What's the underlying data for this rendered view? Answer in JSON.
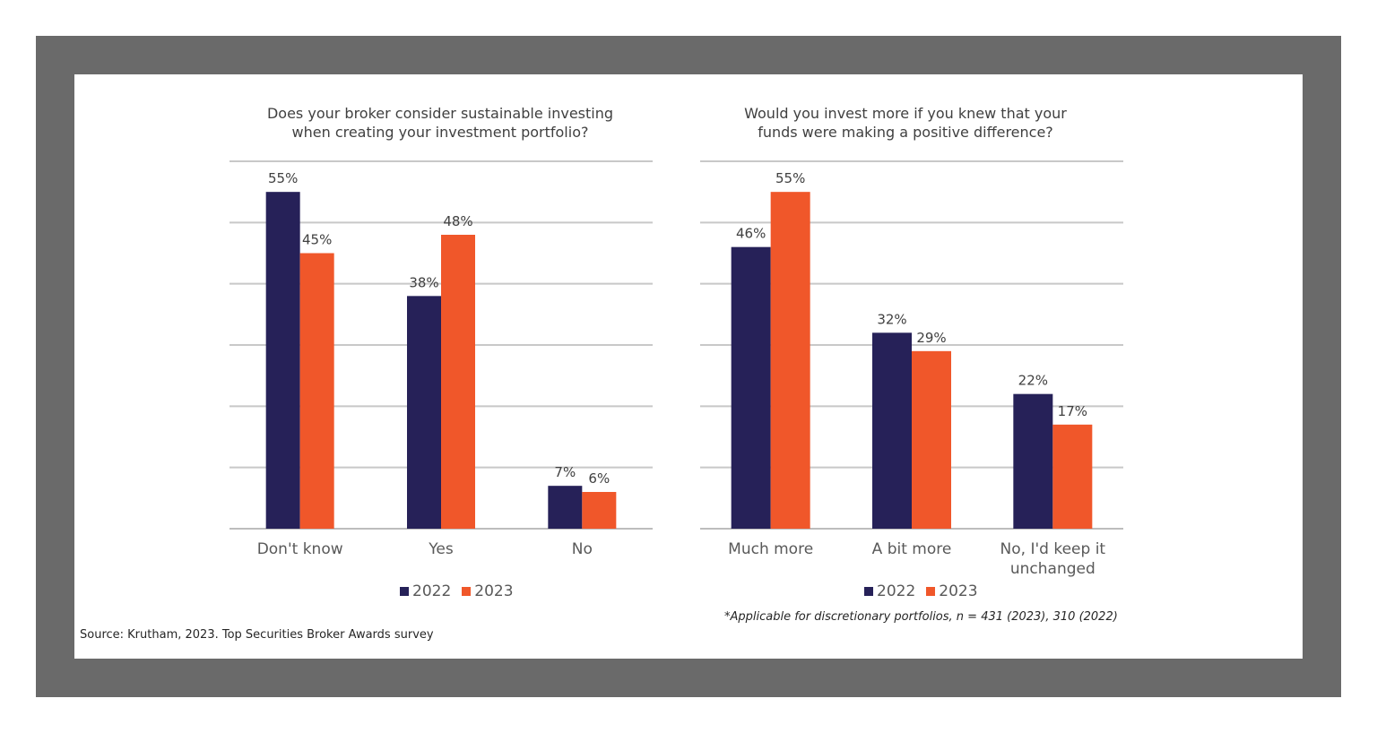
{
  "colors": {
    "series_2022": "#262158",
    "series_2023": "#f0572a",
    "grid": "#c8c8c8",
    "frame": "#6a6a6a"
  },
  "chart_data": [
    {
      "type": "bar",
      "title_lines": [
        "Does your broker consider sustainable investing",
        "when creating your investment portfolio?"
      ],
      "categories": [
        [
          "Don't know"
        ],
        [
          "Yes"
        ],
        [
          "No"
        ]
      ],
      "series": [
        {
          "name": "2022",
          "values": [
            55,
            38,
            7
          ],
          "labels": [
            "55%",
            "38%",
            "7%"
          ]
        },
        {
          "name": "2023",
          "values": [
            45,
            48,
            6
          ],
          "labels": [
            "45%",
            "48%",
            "6%"
          ]
        }
      ],
      "ylim": [
        0,
        60
      ],
      "grid": true,
      "legend": "bottom-center"
    },
    {
      "type": "bar",
      "title_lines": [
        "Would you invest more if you knew that your",
        "funds were making a positive difference?"
      ],
      "categories": [
        [
          "Much more"
        ],
        [
          "A bit more"
        ],
        [
          "No, I'd keep it",
          "unchanged"
        ]
      ],
      "series": [
        {
          "name": "2022",
          "values": [
            46,
            32,
            22
          ],
          "labels": [
            "46%",
            "32%",
            "22%"
          ]
        },
        {
          "name": "2023",
          "values": [
            55,
            29,
            17
          ],
          "labels": [
            "55%",
            "29%",
            "17%"
          ]
        }
      ],
      "ylim": [
        0,
        60
      ],
      "grid": true,
      "legend": "bottom-center"
    }
  ],
  "legend": {
    "label_2022": "2022",
    "label_2023": "2023"
  },
  "footnote": "*Applicable for discretionary portfolios, n = 431 (2023), 310 (2022)",
  "source": "Source: Krutham, 2023. Top Securities Broker Awards survey"
}
